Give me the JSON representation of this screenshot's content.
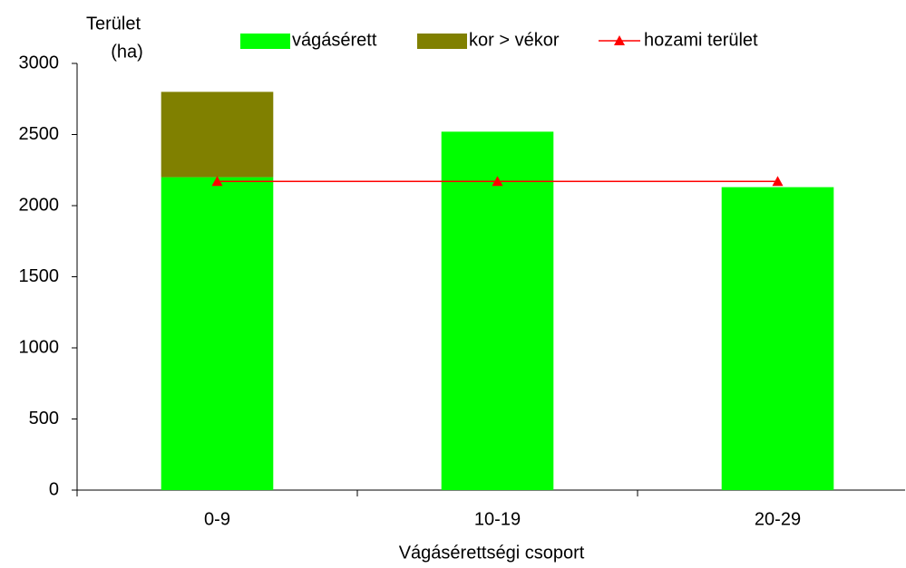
{
  "chart_data": {
    "type": "bar",
    "stacked": true,
    "y_label": [
      "Terület",
      "(ha)"
    ],
    "x_label": "Vágásérettségi csoport",
    "categories": [
      "0-9",
      "10-19",
      "20-29"
    ],
    "series": [
      {
        "name": "vágásérett",
        "type": "bar",
        "color": "#00ff00",
        "values": [
          2200,
          2520,
          2130
        ]
      },
      {
        "name": "kor > vékor",
        "type": "bar",
        "color": "#808000",
        "values": [
          600,
          null,
          null
        ]
      },
      {
        "name": "hozami terület",
        "type": "line",
        "color": "#ff0000",
        "values": [
          2170,
          2170,
          2170
        ]
      }
    ],
    "ylim": [
      0,
      3000
    ],
    "yticks": [
      0,
      500,
      1000,
      1500,
      2000,
      2500,
      3000
    ]
  }
}
